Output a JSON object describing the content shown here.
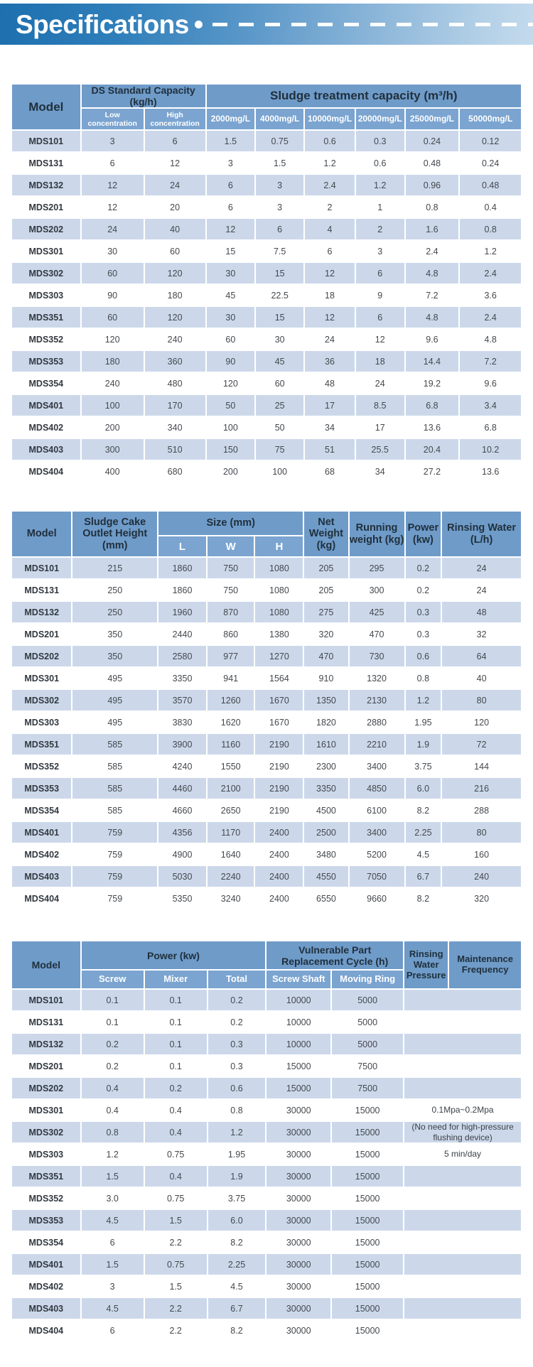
{
  "banner": {
    "title": "Specifications",
    "bullet": "•"
  },
  "colors": {
    "banner_blue_start": "#1d6fae",
    "banner_blue_end": "#c4daed",
    "header_blue": "#6f9bc9",
    "subheader_blue": "#7ba4d0",
    "stripe_blue": "#ccd8ea",
    "row_white": "#ffffff",
    "header_text_dark": "#20303c",
    "header_text_white": "#ffffff"
  },
  "table1": {
    "head": {
      "model": "Model",
      "group1": "DS Standard Capacity (kg/h)",
      "group2": "Sludge treatment capacity  (m³/h)",
      "sub": [
        "Low concentration",
        "High concentration",
        "2000mg/L",
        "4000mg/L",
        "10000mg/L",
        "20000mg/L",
        "25000mg/L",
        "50000mg/L"
      ]
    },
    "rows": [
      [
        "MDS101",
        "3",
        "6",
        "1.5",
        "0.75",
        "0.6",
        "0.3",
        "0.24",
        "0.12"
      ],
      [
        "MDS131",
        "6",
        "12",
        "3",
        "1.5",
        "1.2",
        "0.6",
        "0.48",
        "0.24"
      ],
      [
        "MDS132",
        "12",
        "24",
        "6",
        "3",
        "2.4",
        "1.2",
        "0.96",
        "0.48"
      ],
      [
        "MDS201",
        "12",
        "20",
        "6",
        "3",
        "2",
        "1",
        "0.8",
        "0.4"
      ],
      [
        "MDS202",
        "24",
        "40",
        "12",
        "6",
        "4",
        "2",
        "1.6",
        "0.8"
      ],
      [
        "MDS301",
        "30",
        "60",
        "15",
        "7.5",
        "6",
        "3",
        "2.4",
        "1.2"
      ],
      [
        "MDS302",
        "60",
        "120",
        "30",
        "15",
        "12",
        "6",
        "4.8",
        "2.4"
      ],
      [
        "MDS303",
        "90",
        "180",
        "45",
        "22.5",
        "18",
        "9",
        "7.2",
        "3.6"
      ],
      [
        "MDS351",
        "60",
        "120",
        "30",
        "15",
        "12",
        "6",
        "4.8",
        "2.4"
      ],
      [
        "MDS352",
        "120",
        "240",
        "60",
        "30",
        "24",
        "12",
        "9.6",
        "4.8"
      ],
      [
        "MDS353",
        "180",
        "360",
        "90",
        "45",
        "36",
        "18",
        "14.4",
        "7.2"
      ],
      [
        "MDS354",
        "240",
        "480",
        "120",
        "60",
        "48",
        "24",
        "19.2",
        "9.6"
      ],
      [
        "MDS401",
        "100",
        "170",
        "50",
        "25",
        "17",
        "8.5",
        "6.8",
        "3.4"
      ],
      [
        "MDS402",
        "200",
        "340",
        "100",
        "50",
        "34",
        "17",
        "13.6",
        "6.8"
      ],
      [
        "MDS403",
        "300",
        "510",
        "150",
        "75",
        "51",
        "25.5",
        "20.4",
        "10.2"
      ],
      [
        "MDS404",
        "400",
        "680",
        "200",
        "100",
        "68",
        "34",
        "27.2",
        "13.6"
      ]
    ]
  },
  "table2": {
    "head": {
      "model": "Model",
      "outlet": "Sludge Cake Outlet Height (mm)",
      "size": "Size  (mm)",
      "sub": [
        "L",
        "W",
        "H"
      ],
      "net": "Net Weight (kg)",
      "running": "Running weight (kg)",
      "power": "Power (kw)",
      "rinsing": "Rinsing Water (L/h)"
    },
    "rows": [
      [
        "MDS101",
        "215",
        "1860",
        "750",
        "1080",
        "205",
        "295",
        "0.2",
        "24"
      ],
      [
        "MDS131",
        "250",
        "1860",
        "750",
        "1080",
        "205",
        "300",
        "0.2",
        "24"
      ],
      [
        "MDS132",
        "250",
        "1960",
        "870",
        "1080",
        "275",
        "425",
        "0.3",
        "48"
      ],
      [
        "MDS201",
        "350",
        "2440",
        "860",
        "1380",
        "320",
        "470",
        "0.3",
        "32"
      ],
      [
        "MDS202",
        "350",
        "2580",
        "977",
        "1270",
        "470",
        "730",
        "0.6",
        "64"
      ],
      [
        "MDS301",
        "495",
        "3350",
        "941",
        "1564",
        "910",
        "1320",
        "0.8",
        "40"
      ],
      [
        "MDS302",
        "495",
        "3570",
        "1260",
        "1670",
        "1350",
        "2130",
        "1.2",
        "80"
      ],
      [
        "MDS303",
        "495",
        "3830",
        "1620",
        "1670",
        "1820",
        "2880",
        "1.95",
        "120"
      ],
      [
        "MDS351",
        "585",
        "3900",
        "1160",
        "2190",
        "1610",
        "2210",
        "1.9",
        "72"
      ],
      [
        "MDS352",
        "585",
        "4240",
        "1550",
        "2190",
        "2300",
        "3400",
        "3.75",
        "144"
      ],
      [
        "MDS353",
        "585",
        "4460",
        "2100",
        "2190",
        "3350",
        "4850",
        "6.0",
        "216"
      ],
      [
        "MDS354",
        "585",
        "4660",
        "2650",
        "2190",
        "4500",
        "6100",
        "8.2",
        "288"
      ],
      [
        "MDS401",
        "759",
        "4356",
        "1170",
        "2400",
        "2500",
        "3400",
        "2.25",
        "80"
      ],
      [
        "MDS402",
        "759",
        "4900",
        "1640",
        "2400",
        "3480",
        "5200",
        "4.5",
        "160"
      ],
      [
        "MDS403",
        "759",
        "5030",
        "2240",
        "2400",
        "4550",
        "7050",
        "6.7",
        "240"
      ],
      [
        "MDS404",
        "759",
        "5350",
        "3240",
        "2400",
        "6550",
        "9660",
        "8.2",
        "320"
      ]
    ]
  },
  "table3": {
    "head": {
      "model": "Model",
      "power": "Power  (kw)",
      "cycle": "Vulnerable Part Replacement Cycle (h)",
      "sub": [
        "Screw",
        "Mixer",
        "Total",
        "Screw Shaft",
        "Moving Ring"
      ],
      "rinsing_pressure": "Rinsing Water Pressure",
      "maintenance": "Maintenance Frequency"
    },
    "rows": [
      [
        "MDS101",
        "0.1",
        "0.1",
        "0.2",
        "10000",
        "5000",
        ""
      ],
      [
        "MDS131",
        "0.1",
        "0.1",
        "0.2",
        "10000",
        "5000",
        ""
      ],
      [
        "MDS132",
        "0.2",
        "0.1",
        "0.3",
        "10000",
        "5000",
        ""
      ],
      [
        "MDS201",
        "0.2",
        "0.1",
        "0.3",
        "15000",
        "7500",
        ""
      ],
      [
        "MDS202",
        "0.4",
        "0.2",
        "0.6",
        "15000",
        "7500",
        ""
      ],
      [
        "MDS301",
        "0.4",
        "0.4",
        "0.8",
        "30000",
        "15000",
        "0.1Mpa~0.2Mpa"
      ],
      [
        "MDS302",
        "0.8",
        "0.4",
        "1.2",
        "30000",
        "15000",
        "(No need for high-pressure flushing device)"
      ],
      [
        "MDS303",
        "1.2",
        "0.75",
        "1.95",
        "30000",
        "15000",
        "5 min/day"
      ],
      [
        "MDS351",
        "1.5",
        "0.4",
        "1.9",
        "30000",
        "15000",
        ""
      ],
      [
        "MDS352",
        "3.0",
        "0.75",
        "3.75",
        "30000",
        "15000",
        ""
      ],
      [
        "MDS353",
        "4.5",
        "1.5",
        "6.0",
        "30000",
        "15000",
        ""
      ],
      [
        "MDS354",
        "6",
        "2.2",
        "8.2",
        "30000",
        "15000",
        ""
      ],
      [
        "MDS401",
        "1.5",
        "0.75",
        "2.25",
        "30000",
        "15000",
        ""
      ],
      [
        "MDS402",
        "3",
        "1.5",
        "4.5",
        "30000",
        "15000",
        ""
      ],
      [
        "MDS403",
        "4.5",
        "2.2",
        "6.7",
        "30000",
        "15000",
        ""
      ],
      [
        "MDS404",
        "6",
        "2.2",
        "8.2",
        "30000",
        "15000",
        ""
      ]
    ]
  }
}
